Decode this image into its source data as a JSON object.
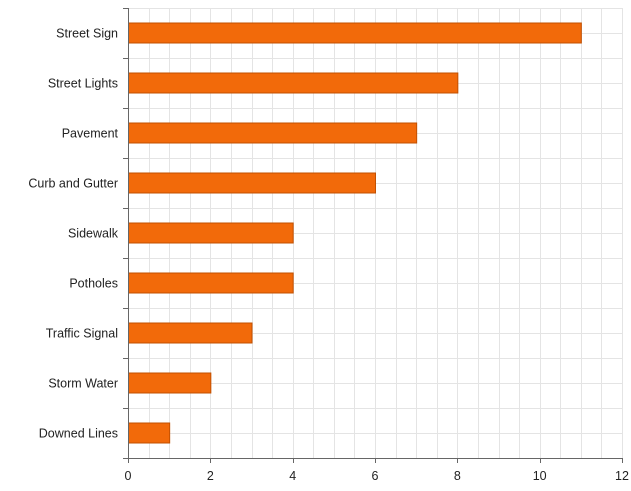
{
  "chart_data": {
    "type": "bar",
    "orientation": "horizontal",
    "categories": [
      "Street Sign",
      "Street Lights",
      "Pavement",
      "Curb and Gutter",
      "Sidewalk",
      "Potholes",
      "Traffic Signal",
      "Storm Water",
      "Downed Lines"
    ],
    "values": [
      11,
      8,
      7,
      6,
      4,
      4,
      3,
      2,
      1
    ],
    "title": "",
    "xlabel": "",
    "ylabel": "",
    "xlim": [
      0,
      12
    ],
    "x_ticks": [
      "0",
      "2",
      "4",
      "6",
      "8",
      "10",
      "12"
    ],
    "grid": true,
    "legend": "none",
    "colors": {
      "bar": "#f26a0a",
      "bar_edge": "#c25000"
    }
  }
}
